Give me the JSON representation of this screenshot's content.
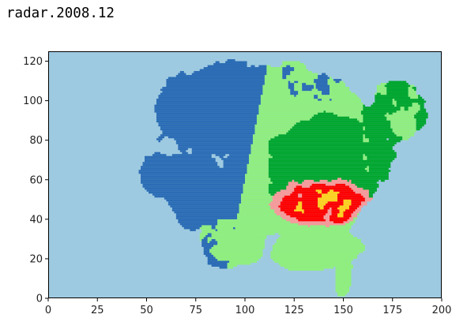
{
  "header": {
    "title": "radar.2008.12"
  },
  "chart_data": {
    "type": "heatmap",
    "title": "radar.2008.12",
    "xlabel": "",
    "ylabel": "",
    "xlim": [
      0,
      200
    ],
    "ylim": [
      0,
      125
    ],
    "x_ticks": [
      0,
      25,
      50,
      75,
      100,
      125,
      150,
      175,
      200
    ],
    "y_ticks": [
      0,
      20,
      40,
      60,
      80,
      100,
      120
    ],
    "grid": false,
    "colorbar": false,
    "colors": {
      "background": "#9ecae1",
      "level_1": "#2b6cb5",
      "level_2": "#90ee80",
      "level_3": "#00a62e",
      "level_4": "#f79a9a",
      "level_5": "#ff0000",
      "level_6": "#ffd21f"
    },
    "regions": [
      {
        "level": 1,
        "description": "west / northwest precipitation field",
        "x_range": [
          40,
          130
        ],
        "y_range": [
          20,
          120
        ]
      },
      {
        "level": 2,
        "description": "northern band and southern fringes",
        "x_range": [
          90,
          195
        ],
        "y_range": [
          0,
          120
        ]
      },
      {
        "level": 3,
        "description": "east / northeast",
        "x_range": [
          115,
          195
        ],
        "y_range": [
          40,
          110
        ]
      },
      {
        "level": 4,
        "description": "central-east core",
        "x_range": [
          110,
          170
        ],
        "y_range": [
          30,
          80
        ]
      },
      {
        "level": 5,
        "description": "southeast heavy core",
        "x_range": [
          105,
          165
        ],
        "y_range": [
          20,
          60
        ]
      },
      {
        "level": 6,
        "description": "scattered maxima in heavy core",
        "x_range": [
          125,
          160
        ],
        "y_range": [
          25,
          55
        ]
      }
    ]
  }
}
